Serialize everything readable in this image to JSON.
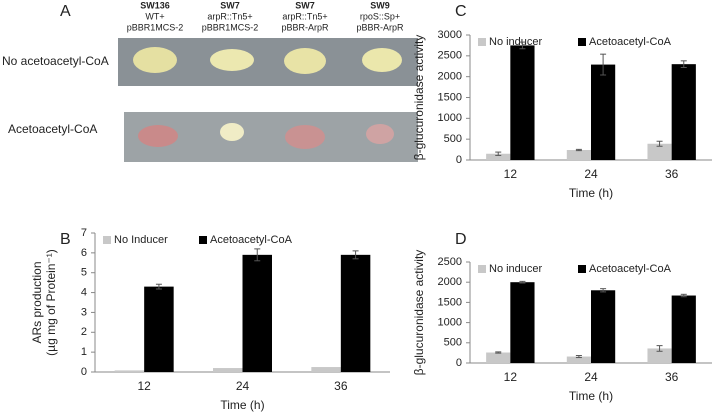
{
  "panel_a": {
    "label": "A",
    "columns": [
      {
        "strain": "SW136",
        "genotype": "WT+",
        "plasmid": "pBBR1MCS-2"
      },
      {
        "strain": "SW7",
        "genotype": "arpR::Tn5+",
        "plasmid": "pBBR1MCS-2"
      },
      {
        "strain": "SW7",
        "genotype": "arpR::Tn5+",
        "plasmid": "pBBR-ArpR"
      },
      {
        "strain": "SW9",
        "genotype": "rpoS::Sp+",
        "plasmid": "pBBR-ArpR"
      }
    ],
    "rows": [
      "No acetoacetyl-CoA",
      "Acetoacetyl-CoA"
    ]
  },
  "chart_data": [
    {
      "type": "bar",
      "panel": "B",
      "ylabel": [
        "ARs production",
        "(µg mg of  Protein⁻¹)"
      ],
      "xlabel": "Time (h)",
      "categories": [
        "12",
        "24",
        "36"
      ],
      "legend": "top-left",
      "series": [
        {
          "name": "No Inducer",
          "color": "#c8c8c8",
          "values": [
            0.08,
            0.2,
            0.25
          ]
        },
        {
          "name": "Acetoacetyl-CoA",
          "color": "#000000",
          "values": [
            4.3,
            5.9,
            5.9
          ],
          "errors": [
            0.12,
            0.3,
            0.2
          ]
        }
      ],
      "ylim": [
        0,
        7
      ],
      "yticks": [
        0,
        1,
        2,
        3,
        4,
        5,
        6,
        7
      ]
    },
    {
      "type": "bar",
      "panel": "C",
      "ylabel": [
        "β-glucuronidase activity"
      ],
      "xlabel": "Time (h)",
      "categories": [
        "12",
        "24",
        "36"
      ],
      "legend": "top-left",
      "series": [
        {
          "name": "No inducer",
          "color": "#c8c8c8",
          "values": [
            150,
            240,
            390
          ],
          "errors": [
            40,
            15,
            60
          ]
        },
        {
          "name": "Acetoacetyl-CoA",
          "color": "#000000",
          "values": [
            2750,
            2290,
            2300
          ],
          "errors": [
            80,
            250,
            80
          ]
        }
      ],
      "ylim": [
        0,
        3000
      ],
      "yticks": [
        0,
        500,
        1000,
        1500,
        2000,
        2500,
        3000
      ]
    },
    {
      "type": "bar",
      "panel": "D",
      "ylabel": [
        "β-glucuronidase activity"
      ],
      "xlabel": "Time (h)",
      "categories": [
        "12",
        "24",
        "36"
      ],
      "legend": "top-left",
      "series": [
        {
          "name": "No inducer",
          "color": "#c8c8c8",
          "values": [
            260,
            160,
            360
          ],
          "errors": [
            15,
            25,
            70
          ]
        },
        {
          "name": "Acetoacetyl-CoA",
          "color": "#000000",
          "values": [
            2000,
            1800,
            1670
          ],
          "errors": [
            20,
            40,
            30
          ]
        }
      ],
      "ylim": [
        0,
        2500
      ],
      "yticks": [
        0,
        500,
        1000,
        1500,
        2000,
        2500
      ]
    }
  ]
}
